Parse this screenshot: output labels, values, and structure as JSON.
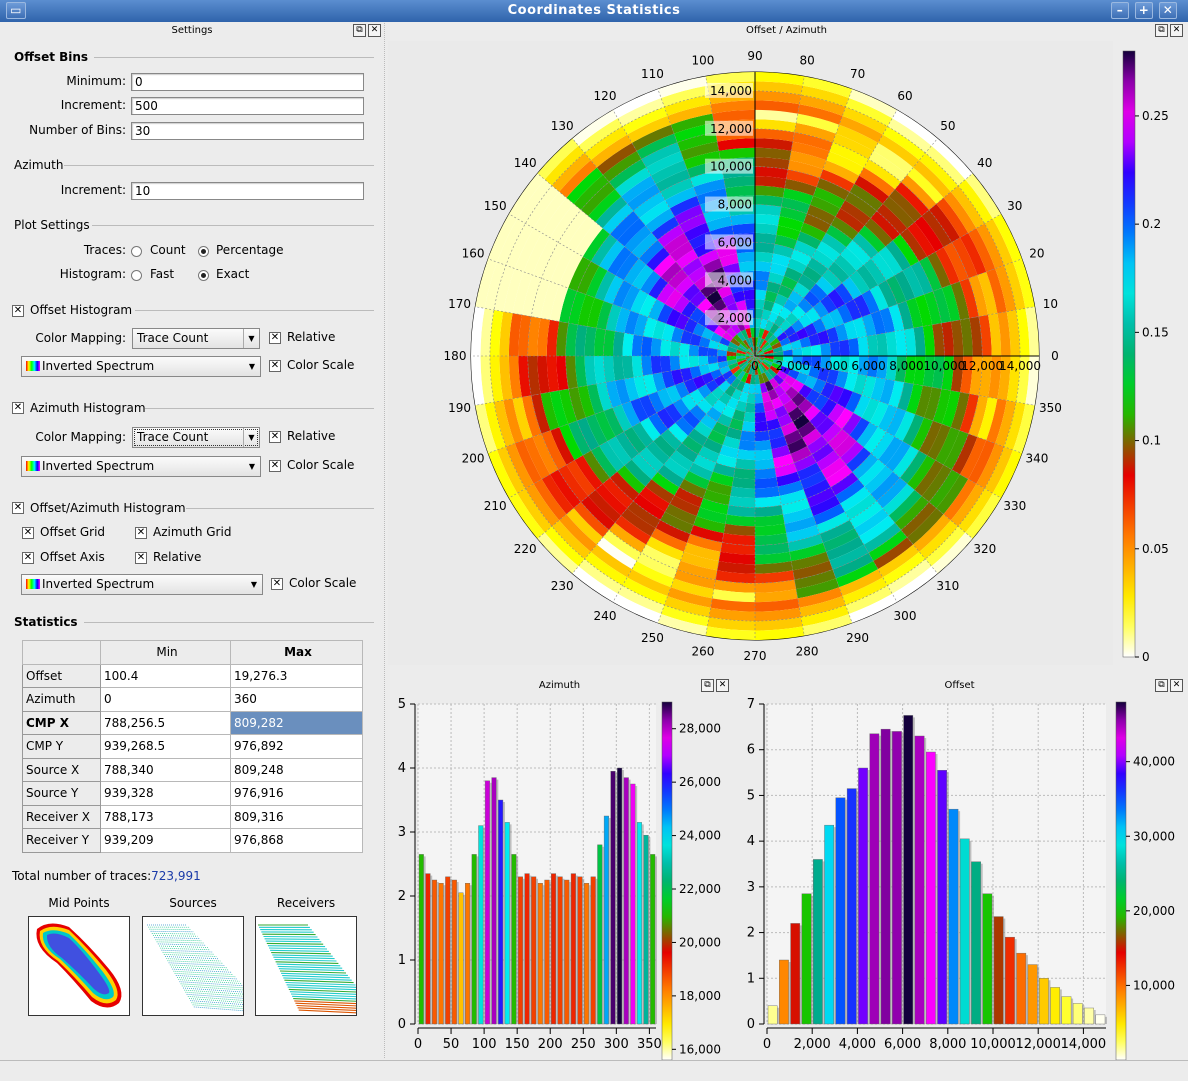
{
  "window": {
    "title": "Coordinates Statistics"
  },
  "docks": {
    "settings": "Settings",
    "polar": "Offset / Azimuth",
    "azimuth": "Azimuth",
    "offset": "Offset"
  },
  "offset_bins": {
    "title": "Offset Bins",
    "min_label": "Minimum:",
    "min_value": "0",
    "inc_label": "Increment:",
    "inc_value": "500",
    "nbins_label": "Number of Bins:",
    "nbins_value": "30"
  },
  "azimuth": {
    "title": "Azimuth",
    "inc_label": "Increment:",
    "inc_value": "10"
  },
  "plot_settings": {
    "title": "Plot Settings",
    "traces_label": "Traces:",
    "count": "Count",
    "percentage": "Percentage",
    "hist_label": "Histogram:",
    "fast": "Fast",
    "exact": "Exact"
  },
  "offset_hist": {
    "title": "Offset Histogram",
    "cm_label": "Color Mapping:",
    "cm_value": "Trace Count",
    "relative": "Relative",
    "palette": "Inverted Spectrum",
    "color_scale": "Color Scale"
  },
  "azimuth_hist": {
    "title": "Azimuth Histogram",
    "cm_label": "Color Mapping:",
    "cm_value": "Trace Count",
    "relative": "Relative",
    "palette": "Inverted Spectrum",
    "color_scale": "Color Scale"
  },
  "oa_hist": {
    "title": "Offset/Azimuth Histogram",
    "offset_grid": "Offset Grid",
    "azimuth_grid": "Azimuth Grid",
    "offset_axis": "Offset Axis",
    "relative": "Relative",
    "palette": "Inverted Spectrum",
    "color_scale": "Color Scale"
  },
  "statistics": {
    "title": "Statistics",
    "col_min": "Min",
    "col_max": "Max",
    "rows": [
      {
        "name": "Offset",
        "min": "100.4",
        "max": "19,276.3"
      },
      {
        "name": "Azimuth",
        "min": "0",
        "max": "360"
      },
      {
        "name": "CMP X",
        "min": "788,256.5",
        "max": "809,282"
      },
      {
        "name": "CMP Y",
        "min": "939,268.5",
        "max": "976,892"
      },
      {
        "name": "Source X",
        "min": "788,340",
        "max": "809,248"
      },
      {
        "name": "Source Y",
        "min": "939,328",
        "max": "976,916"
      },
      {
        "name": "Receiver X",
        "min": "788,173",
        "max": "809,316"
      },
      {
        "name": "Receiver Y",
        "min": "939,209",
        "max": "976,868"
      }
    ],
    "total_label": "Total number of traces:",
    "total_value": "723,991"
  },
  "thumbs": {
    "mid": "Mid Points",
    "src": "Sources",
    "rcv": "Receivers"
  },
  "chart_data": [
    {
      "type": "heatmap",
      "name": "offset-azimuth-polar",
      "angle_ticks": [
        "0",
        "10",
        "20",
        "30",
        "40",
        "50",
        "60",
        "70",
        "80",
        "90",
        "100",
        "110",
        "120",
        "130",
        "140",
        "150",
        "160",
        "170",
        "180",
        "190",
        "200",
        "210",
        "220",
        "230",
        "240",
        "250",
        "260",
        "270",
        "280",
        "290",
        "300",
        "310",
        "320",
        "330",
        "340",
        "350"
      ],
      "radial_ticks": [
        "2,000",
        "4,000",
        "6,000",
        "8,000",
        "10,000",
        "12,000",
        "14,000"
      ],
      "colorbar_ticks": [
        "0",
        "0.05",
        "0.1",
        "0.15",
        "0.2",
        "0.25"
      ],
      "colorbar_range": [
        0,
        0.28
      ]
    },
    {
      "type": "bar",
      "name": "azimuth-histogram",
      "x": [
        5,
        15,
        25,
        35,
        45,
        55,
        65,
        75,
        85,
        95,
        105,
        115,
        125,
        135,
        145,
        155,
        165,
        175,
        185,
        195,
        205,
        215,
        225,
        235,
        245,
        255,
        265,
        275,
        285,
        295,
        305,
        315,
        325,
        335,
        345,
        355
      ],
      "values": [
        2.65,
        2.35,
        2.25,
        2.2,
        2.3,
        2.25,
        2.05,
        2.2,
        2.65,
        3.1,
        3.8,
        3.85,
        3.5,
        3.15,
        2.65,
        2.3,
        2.35,
        2.3,
        2.2,
        2.25,
        2.35,
        2.3,
        2.25,
        2.35,
        2.3,
        2.2,
        2.3,
        2.8,
        3.25,
        3.95,
        4.0,
        3.85,
        3.75,
        3.15,
        2.95,
        2.65
      ],
      "xticks": [
        "0",
        "50",
        "100",
        "150",
        "200",
        "250",
        "300",
        "350"
      ],
      "xlim": [
        0,
        360
      ],
      "yticks": [
        "0",
        "1",
        "2",
        "3",
        "4",
        "5"
      ],
      "ylim": [
        0,
        5
      ],
      "colorbar_ticks": [
        "16,000",
        "18,000",
        "20,000",
        "22,000",
        "24,000",
        "26,000",
        "28,000"
      ],
      "colorbar_range": [
        15600,
        29000
      ]
    },
    {
      "type": "bar",
      "name": "offset-histogram",
      "x": [
        250,
        750,
        1250,
        1750,
        2250,
        2750,
        3250,
        3750,
        4250,
        4750,
        5250,
        5750,
        6250,
        6750,
        7250,
        7750,
        8250,
        8750,
        9250,
        9750,
        10250,
        10750,
        11250,
        11750,
        12250,
        12750,
        13250,
        13750,
        14250,
        14750
      ],
      "values": [
        0.4,
        1.4,
        2.2,
        2.85,
        3.6,
        4.35,
        4.95,
        5.15,
        5.6,
        6.35,
        6.45,
        6.4,
        6.75,
        6.3,
        5.95,
        5.55,
        4.7,
        4.05,
        3.55,
        2.85,
        2.35,
        1.9,
        1.55,
        1.3,
        1.0,
        0.8,
        0.6,
        0.45,
        0.35,
        0.2
      ],
      "xticks": [
        "0",
        "2,000",
        "4,000",
        "6,000",
        "8,000",
        "10,000",
        "12,000",
        "14,000"
      ],
      "xlim": [
        0,
        15000
      ],
      "yticks": [
        "0",
        "1",
        "2",
        "3",
        "4",
        "5",
        "6",
        "7"
      ],
      "ylim": [
        0,
        7
      ],
      "colorbar_ticks": [
        "10,000",
        "20,000",
        "30,000",
        "40,000"
      ],
      "colorbar_range": [
        0,
        48000
      ]
    }
  ]
}
